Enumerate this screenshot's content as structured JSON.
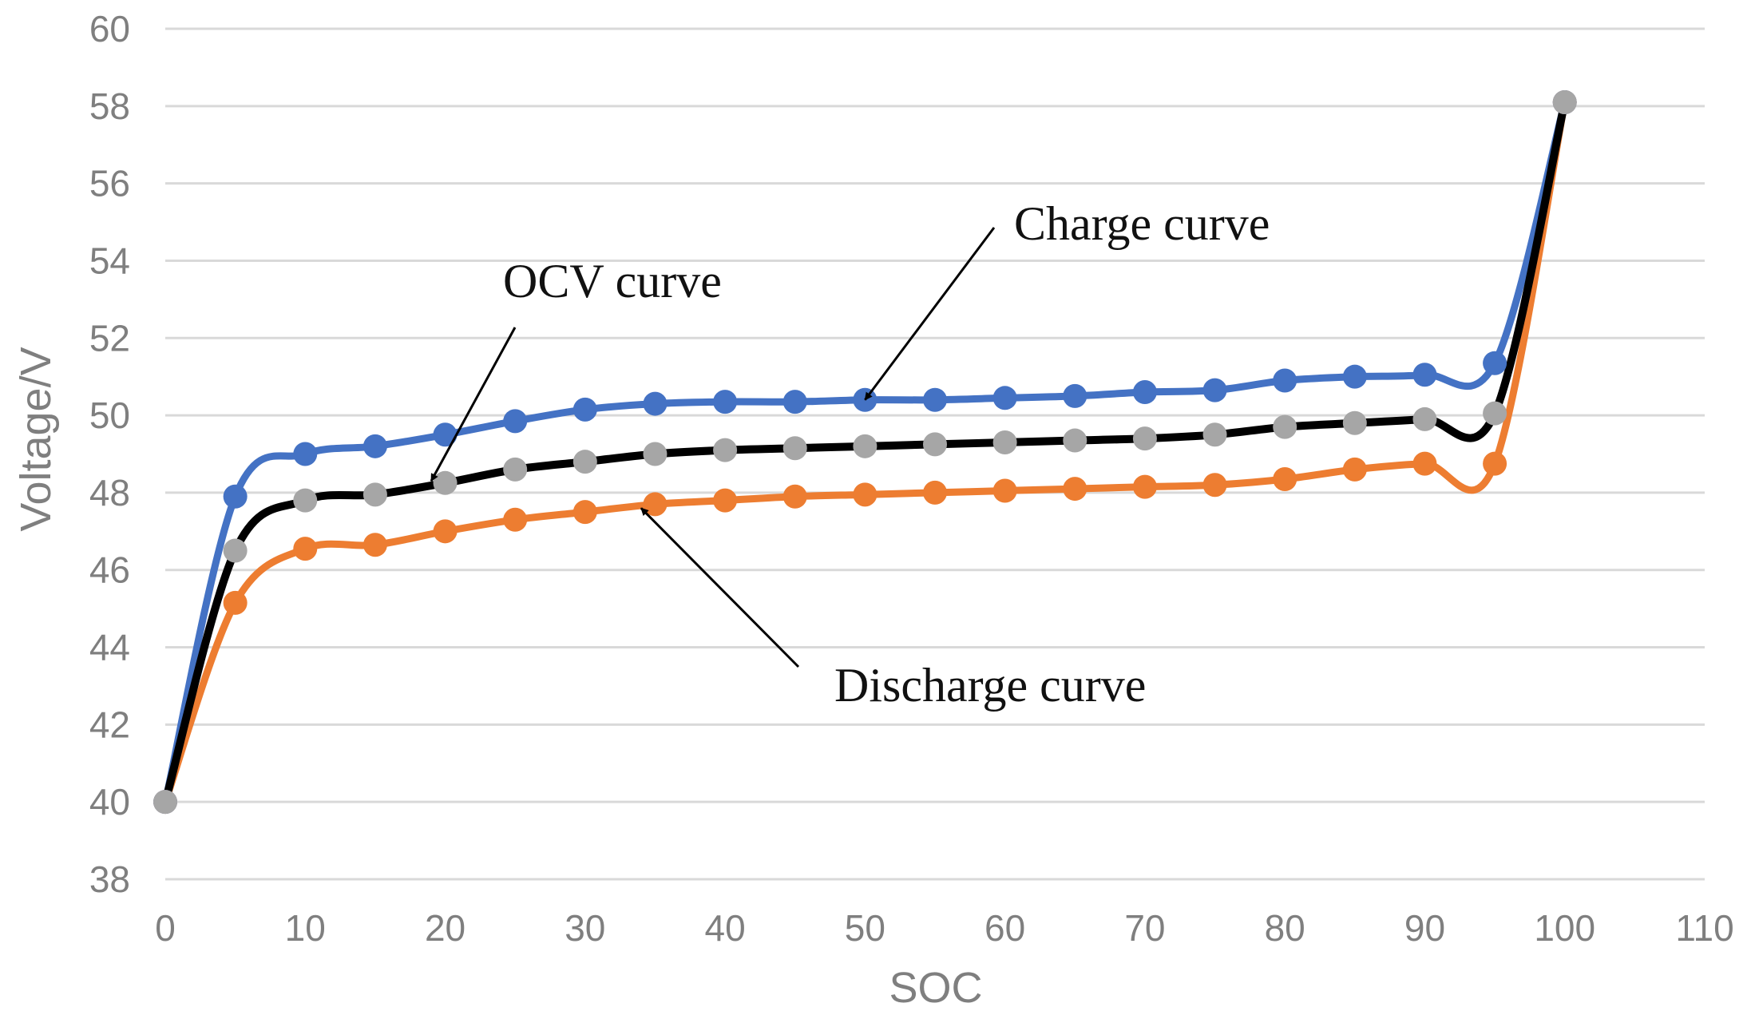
{
  "chart_data": {
    "type": "line",
    "title": "",
    "xlabel": "SOC",
    "ylabel": "Voltage/V",
    "xlim": [
      0,
      110
    ],
    "ylim": [
      38,
      60
    ],
    "xticks": [
      0,
      10,
      20,
      30,
      40,
      50,
      60,
      70,
      80,
      90,
      100,
      110
    ],
    "yticks": [
      38,
      40,
      42,
      44,
      46,
      48,
      50,
      52,
      54,
      56,
      58,
      60
    ],
    "grid": "horizontal",
    "x": [
      0,
      5,
      10,
      15,
      20,
      25,
      30,
      35,
      40,
      45,
      50,
      55,
      60,
      65,
      70,
      75,
      80,
      85,
      90,
      95,
      100
    ],
    "series": [
      {
        "name": "Charge curve",
        "color": "#4472c4",
        "marker_color": "#4472c4",
        "values": [
          40.0,
          47.9,
          49.0,
          49.2,
          49.5,
          49.85,
          50.15,
          50.3,
          50.35,
          50.35,
          50.4,
          50.4,
          50.45,
          50.5,
          50.6,
          50.65,
          50.9,
          51.0,
          51.05,
          51.35,
          58.1
        ]
      },
      {
        "name": "OCV curve",
        "color": "#000000",
        "marker_color": "#a6a6a6",
        "values": [
          40.0,
          46.5,
          47.8,
          47.95,
          48.25,
          48.6,
          48.8,
          49.0,
          49.1,
          49.15,
          49.2,
          49.25,
          49.3,
          49.35,
          49.4,
          49.5,
          49.7,
          49.8,
          49.9,
          50.05,
          58.1
        ]
      },
      {
        "name": "Discharge curve",
        "color": "#ed7d31",
        "marker_color": "#ed7d31",
        "values": [
          40.0,
          45.15,
          46.55,
          46.65,
          47.0,
          47.3,
          47.5,
          47.7,
          47.8,
          47.9,
          47.95,
          48.0,
          48.05,
          48.1,
          48.15,
          48.2,
          48.35,
          48.6,
          48.75,
          48.75,
          58.1
        ]
      }
    ],
    "annotations": [
      {
        "text": "Charge curve",
        "points_to": [
          50,
          50.4
        ]
      },
      {
        "text": "OCV curve",
        "points_to": [
          19,
          48.3
        ]
      },
      {
        "text": "Discharge curve",
        "points_to": [
          34,
          47.6
        ]
      }
    ]
  }
}
